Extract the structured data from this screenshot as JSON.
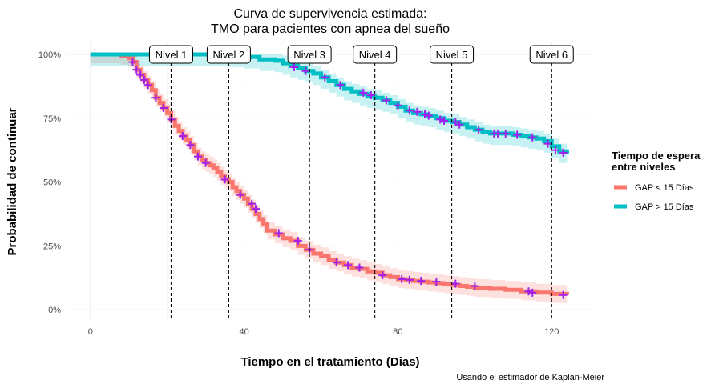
{
  "chart_data": {
    "type": "line",
    "title": [
      "Curva de supervivencia estimada:",
      "TMO para pacientes con apnea del sueño"
    ],
    "xlabel": "Tiempo en el tratamiento (Dias)",
    "ylabel": "Probabilidad de continuar",
    "caption": "Usando el estimador de Kaplan-Meier",
    "xlim": [
      -6,
      131
    ],
    "ylim": [
      -0.04,
      1.05
    ],
    "x_ticks": [
      0,
      40,
      80,
      120
    ],
    "x_tick_labels": [
      "0",
      "40",
      "80",
      "120"
    ],
    "y_ticks": [
      0,
      0.25,
      0.5,
      0.75,
      1.0
    ],
    "y_tick_labels": [
      "0%",
      "25%",
      "50%",
      "75%",
      "100%"
    ],
    "grid": true,
    "legend": {
      "title": "Tiempo de espera\n entre niveles",
      "placement": "right"
    },
    "levels": [
      {
        "label": "Nivel 1",
        "x": 21
      },
      {
        "label": "Nivel 2",
        "x": 36
      },
      {
        "label": "Nivel 3",
        "x": 57
      },
      {
        "label": "Nivel 4",
        "x": 74
      },
      {
        "label": "Nivel 5",
        "x": 94
      },
      {
        "label": "Nivel 6",
        "x": 120
      }
    ],
    "series": [
      {
        "name": "GAP < 15 Días",
        "color": "#F8766D",
        "band_color": "#F8766D",
        "x": [
          0,
          8,
          10,
          11,
          12,
          13,
          14,
          15,
          16,
          17,
          18,
          19,
          20,
          21,
          22,
          23,
          24,
          25,
          26,
          27,
          28,
          29,
          30,
          31,
          32,
          33,
          34,
          35,
          36,
          37,
          38,
          39,
          40,
          41,
          42,
          43,
          44,
          45,
          46,
          48,
          50,
          52,
          54,
          56,
          58,
          60,
          62,
          64,
          66,
          68,
          70,
          72,
          74,
          76,
          78,
          80,
          82,
          84,
          86,
          88,
          90,
          92,
          94,
          96,
          98,
          100,
          104,
          108,
          112,
          116,
          120,
          124
        ],
        "y": [
          1.0,
          0.995,
          0.985,
          0.97,
          0.94,
          0.92,
          0.9,
          0.88,
          0.86,
          0.83,
          0.81,
          0.79,
          0.77,
          0.745,
          0.72,
          0.7,
          0.68,
          0.665,
          0.645,
          0.62,
          0.6,
          0.585,
          0.575,
          0.565,
          0.555,
          0.54,
          0.525,
          0.51,
          0.5,
          0.48,
          0.465,
          0.45,
          0.435,
          0.415,
          0.395,
          0.375,
          0.355,
          0.335,
          0.31,
          0.295,
          0.28,
          0.27,
          0.25,
          0.235,
          0.22,
          0.21,
          0.195,
          0.185,
          0.175,
          0.165,
          0.16,
          0.15,
          0.145,
          0.135,
          0.128,
          0.12,
          0.117,
          0.113,
          0.11,
          0.107,
          0.104,
          0.1,
          0.097,
          0.093,
          0.09,
          0.085,
          0.082,
          0.078,
          0.072,
          0.067,
          0.062,
          0.058
        ],
        "ci_low_offset": 0.035,
        "ci_high_offset": 0.035,
        "censor_x": [
          11,
          12,
          13,
          14,
          15,
          17,
          19,
          21,
          24,
          26,
          28,
          30,
          35,
          39,
          42,
          43,
          49,
          54,
          57,
          64,
          67,
          70,
          76,
          81,
          83,
          86,
          90,
          95,
          100,
          114,
          115,
          123
        ],
        "censor_y": [
          0.97,
          0.94,
          0.92,
          0.9,
          0.88,
          0.83,
          0.79,
          0.745,
          0.68,
          0.645,
          0.6,
          0.575,
          0.51,
          0.45,
          0.415,
          0.395,
          0.3,
          0.27,
          0.235,
          0.185,
          0.175,
          0.165,
          0.135,
          0.12,
          0.117,
          0.113,
          0.11,
          0.102,
          0.093,
          0.072,
          0.067,
          0.058
        ]
      },
      {
        "name": "GAP > 15 Días",
        "color": "#00BFC4",
        "band_color": "#00BFC4",
        "x": [
          0,
          36,
          40,
          44,
          48,
          50,
          52,
          54,
          56,
          58,
          60,
          62,
          64,
          66,
          68,
          70,
          72,
          74,
          76,
          78,
          80,
          82,
          84,
          86,
          88,
          90,
          92,
          94,
          96,
          98,
          100,
          102,
          104,
          106,
          108,
          110,
          112,
          114,
          116,
          118,
          120,
          122,
          124
        ],
        "y": [
          1.0,
          0.995,
          0.99,
          0.98,
          0.975,
          0.965,
          0.955,
          0.945,
          0.935,
          0.925,
          0.91,
          0.895,
          0.88,
          0.865,
          0.855,
          0.845,
          0.835,
          0.83,
          0.82,
          0.81,
          0.795,
          0.78,
          0.77,
          0.765,
          0.76,
          0.75,
          0.74,
          0.735,
          0.725,
          0.715,
          0.705,
          0.695,
          0.69,
          0.69,
          0.69,
          0.685,
          0.68,
          0.675,
          0.67,
          0.66,
          0.64,
          0.62,
          0.61
        ],
        "ci_low_offset": 0.045,
        "ci_high_offset": 0.03,
        "censor_x": [
          39,
          53,
          56,
          61,
          65,
          71,
          73,
          77,
          80,
          83,
          85,
          87,
          88,
          91,
          92,
          95,
          96,
          101,
          105,
          106,
          108,
          111,
          115,
          119,
          121,
          123
        ],
        "censor_y": [
          0.99,
          0.95,
          0.935,
          0.91,
          0.88,
          0.85,
          0.84,
          0.82,
          0.8,
          0.78,
          0.775,
          0.765,
          0.76,
          0.745,
          0.74,
          0.735,
          0.725,
          0.705,
          0.69,
          0.69,
          0.69,
          0.685,
          0.675,
          0.65,
          0.625,
          0.615
        ]
      }
    ],
    "censor_color": "#A020F0"
  }
}
